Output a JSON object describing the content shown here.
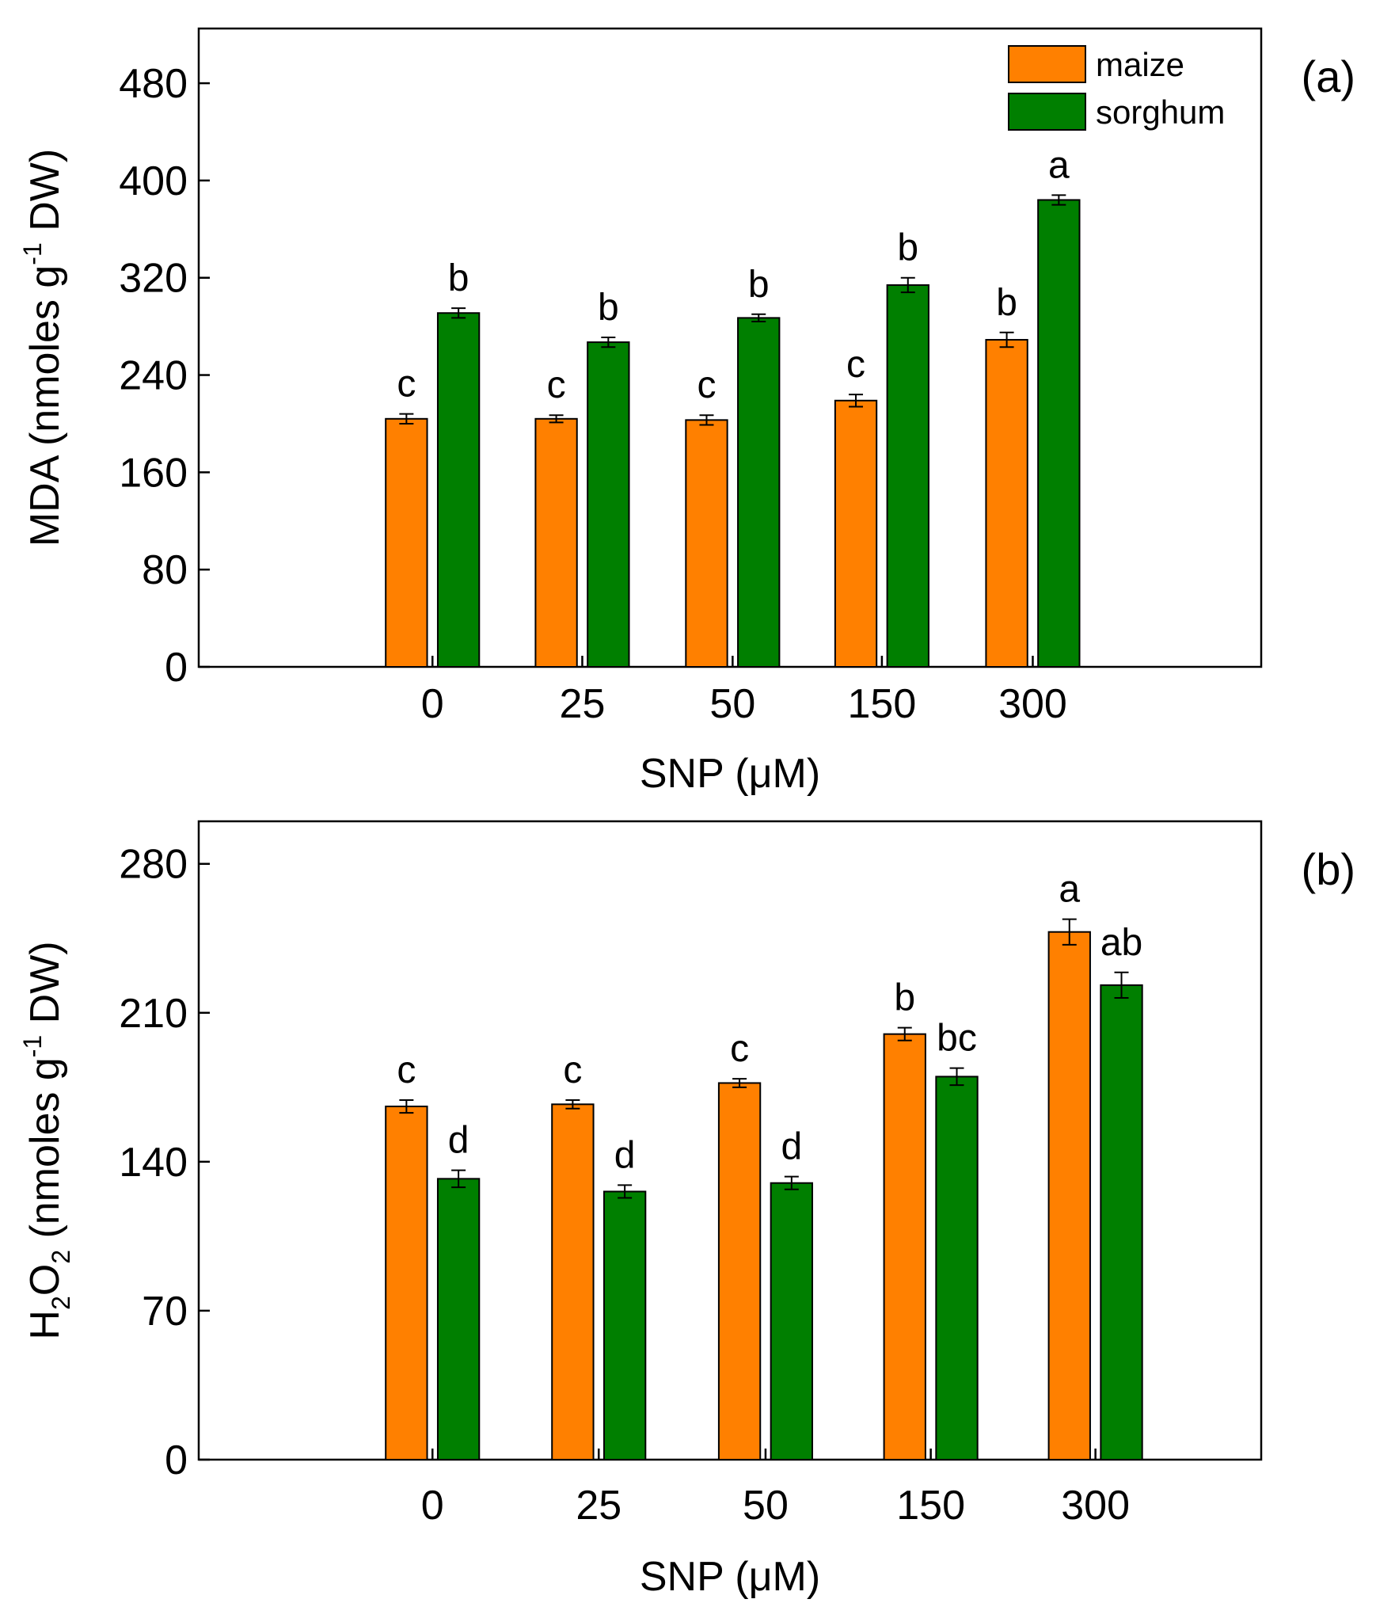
{
  "colors": {
    "maize": "#ff8000",
    "sorghum": "#007f00",
    "axis": "#000000"
  },
  "chart_data": [
    {
      "type": "bar",
      "panel_label": "(a)",
      "categories": [
        "0",
        "25",
        "50",
        "150",
        "300"
      ],
      "xlabel": "SNP (μM)",
      "ylabel": {
        "main": "MDA (nmoles g",
        "sup": "-1",
        "tail": " DW)"
      },
      "ylim": [
        0,
        525
      ],
      "yticks": [
        0,
        80,
        160,
        240,
        320,
        400,
        480
      ],
      "legend": {
        "position": "top-right",
        "entries": [
          "maize",
          "sorghum"
        ]
      },
      "series": [
        {
          "name": "maize",
          "values": [
            204,
            204,
            203,
            219,
            269
          ],
          "errors": [
            4,
            3,
            4,
            5,
            6
          ],
          "sig": [
            "c",
            "c",
            "c",
            "c",
            "b"
          ]
        },
        {
          "name": "sorghum",
          "values": [
            291,
            267,
            287,
            314,
            384
          ],
          "errors": [
            4,
            4,
            3,
            6,
            4
          ],
          "sig": [
            "b",
            "b",
            "b",
            "b",
            "a"
          ]
        }
      ]
    },
    {
      "type": "bar",
      "panel_label": "(b)",
      "categories": [
        "0",
        "25",
        "50",
        "150",
        "300"
      ],
      "xlabel": "SNP (μM)",
      "ylabel": {
        "pre": "H",
        "sub1": "2",
        "mid": "O",
        "sub2": "2",
        "main": " (nmoles g",
        "sup": "-1",
        "tail": " DW)"
      },
      "ylim": [
        0,
        300
      ],
      "yticks": [
        0,
        70,
        140,
        210,
        280
      ],
      "series": [
        {
          "name": "maize",
          "values": [
            166,
            167,
            177,
            200,
            248
          ],
          "errors": [
            3,
            2,
            2,
            3,
            6
          ],
          "sig": [
            "c",
            "c",
            "c",
            "b",
            "a"
          ]
        },
        {
          "name": "sorghum",
          "values": [
            132,
            126,
            130,
            180,
            223
          ],
          "errors": [
            4,
            3,
            3,
            4,
            6
          ],
          "sig": [
            "d",
            "d",
            "d",
            "bc",
            "ab"
          ]
        }
      ]
    }
  ]
}
